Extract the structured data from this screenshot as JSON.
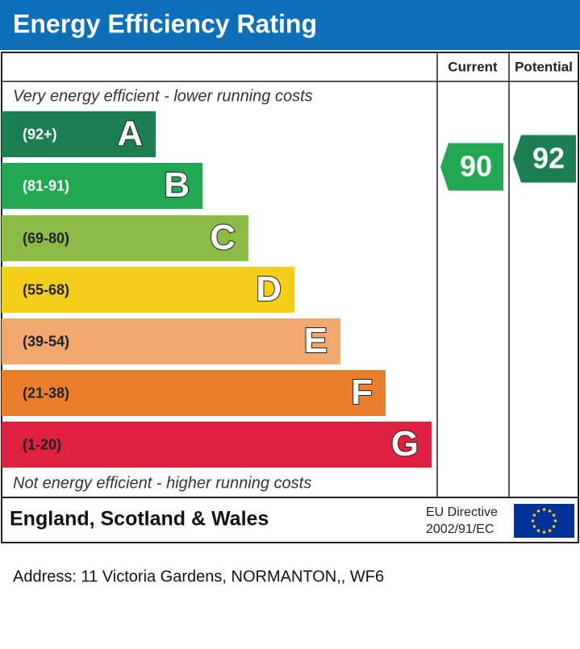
{
  "header": {
    "title": "Energy Efficiency Rating"
  },
  "columns": [
    "Current",
    "Potential"
  ],
  "top_note": "Very energy efficient - lower running costs",
  "bottom_note": "Not energy efficient - higher running costs",
  "bands": [
    {
      "range": "(92+)",
      "letter": "A",
      "color": "#1b7f52"
    },
    {
      "range": "(81-91)",
      "letter": "B",
      "color": "#22a853"
    },
    {
      "range": "(69-80)",
      "letter": "C",
      "color": "#8cbc45"
    },
    {
      "range": "(55-68)",
      "letter": "D",
      "color": "#f5cd1b"
    },
    {
      "range": "(39-54)",
      "letter": "E",
      "color": "#f0a86e"
    },
    {
      "range": "(21-38)",
      "letter": "F",
      "color": "#ea7f2b"
    },
    {
      "range": "(1-20)",
      "letter": "G",
      "color": "#e0203f"
    }
  ],
  "ratings": {
    "current": 90,
    "potential": 92
  },
  "footer": {
    "region": "England, Scotland & Wales",
    "directive": [
      "EU Directive",
      "2002/91/EC"
    ]
  },
  "address": "Address: 11 Victoria Gardens, NORMANTON,, WF6"
}
